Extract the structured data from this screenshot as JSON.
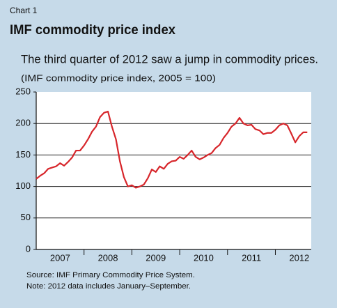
{
  "chart_data": {
    "type": "line",
    "label": "Chart 1",
    "title": "IMF commodity price index",
    "subtitle": "The third quarter of 2012 saw a jump in commodity prices.",
    "y_axis_label": "(IMF commodity price index, 2005 =  100)",
    "notes": [
      "Source: IMF Primary Commodity Price System.",
      "Note: 2012 data includes January–September."
    ],
    "x": [
      2007,
      2007.083,
      2007.167,
      2007.25,
      2007.333,
      2007.417,
      2007.5,
      2007.583,
      2007.667,
      2007.75,
      2007.833,
      2007.917,
      2008,
      2008.083,
      2008.167,
      2008.25,
      2008.333,
      2008.417,
      2008.5,
      2008.583,
      2008.667,
      2008.75,
      2008.833,
      2008.917,
      2009,
      2009.083,
      2009.167,
      2009.25,
      2009.333,
      2009.417,
      2009.5,
      2009.583,
      2009.667,
      2009.75,
      2009.833,
      2009.917,
      2010,
      2010.083,
      2010.167,
      2010.25,
      2010.333,
      2010.417,
      2010.5,
      2010.583,
      2010.667,
      2010.75,
      2010.833,
      2010.917,
      2011,
      2011.083,
      2011.167,
      2011.25,
      2011.333,
      2011.417,
      2011.5,
      2011.583,
      2011.667,
      2011.75,
      2011.833,
      2011.917,
      2012,
      2012.083,
      2012.167,
      2012.25,
      2012.333,
      2012.417,
      2012.5,
      2012.583,
      2012.667
    ],
    "series": [
      {
        "name": "IMF commodity price index",
        "color": "#d7262b",
        "values": [
          112,
          117,
          121,
          128,
          130,
          132,
          137,
          133,
          139,
          146,
          157,
          157,
          165,
          175,
          187,
          195,
          210,
          217,
          219,
          195,
          175,
          140,
          115,
          100,
          102,
          98,
          100,
          103,
          113,
          127,
          123,
          132,
          128,
          136,
          140,
          141,
          147,
          144,
          150,
          157,
          147,
          143,
          146,
          150,
          153,
          161,
          166,
          177,
          185,
          195,
          200,
          209,
          200,
          197,
          198,
          191,
          189,
          183,
          185,
          185,
          190,
          197,
          200,
          197,
          184,
          170,
          180,
          186,
          186
        ]
      }
    ],
    "xlim": [
      2007,
      2012.75
    ],
    "xticks": [
      {
        "value": 2007.5,
        "label": "2007"
      },
      {
        "value": 2008.5,
        "label": "2008"
      },
      {
        "value": 2009.5,
        "label": "2009"
      },
      {
        "value": 2010.5,
        "label": "2010"
      },
      {
        "value": 2011.5,
        "label": "2011"
      },
      {
        "value": 2012.5,
        "label": "2012"
      }
    ],
    "ylim": [
      0,
      250
    ],
    "yticks": [
      0,
      50,
      100,
      150,
      200,
      250
    ],
    "grid": true
  }
}
